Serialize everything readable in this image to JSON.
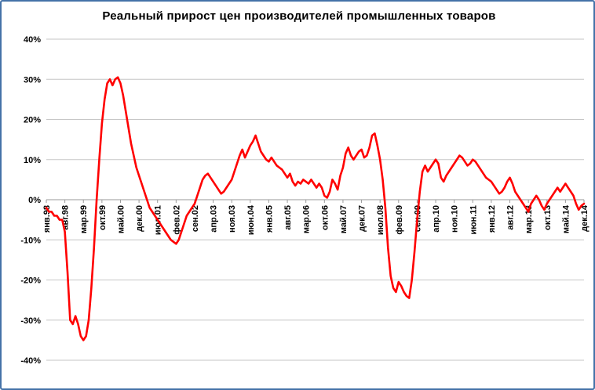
{
  "frame": {
    "border_color": "#4472a8",
    "background_color": "#ffffff"
  },
  "chart_data": {
    "type": "line",
    "title": "Реальный прирост цен производителей промышленных товаров",
    "legend": "none",
    "grid": true,
    "line_color": "#ff0000",
    "ylim": [
      -40,
      40
    ],
    "y_ticks": [
      40,
      30,
      20,
      10,
      0,
      -10,
      -20,
      -30,
      -40
    ],
    "y_tick_suffix": "%",
    "x_tick_interval_months": 7,
    "x_tick_labels": [
      "янв.98",
      "авг.98",
      "мар.99",
      "окт.99",
      "май.00",
      "дек.00",
      "июл.01",
      "фев.02",
      "сен.02",
      "апр.03",
      "ноя.03",
      "июн.04",
      "янв.05",
      "авг.05",
      "мар.06",
      "окт.06",
      "май.07",
      "дек.07",
      "июл.08",
      "фев.09",
      "сен.09",
      "апр.10",
      "ноя.10",
      "июн.11",
      "янв.12",
      "авг.12",
      "мар.13",
      "окт.13",
      "май.14",
      "дек.14"
    ],
    "x_start": "янв.98",
    "x_end": "дек.14",
    "values": [
      -2,
      -3,
      -3,
      -4,
      -4,
      -5,
      -5,
      -8,
      -18,
      -30,
      -31,
      -29,
      -31,
      -34,
      -35,
      -34,
      -30,
      -22,
      -12,
      0,
      10,
      19,
      25,
      29,
      30,
      28.5,
      30,
      30.5,
      29,
      26,
      22,
      18,
      14,
      11,
      8,
      6,
      4,
      2,
      0,
      -2,
      -3,
      -4,
      -5,
      -6,
      -7,
      -8,
      -9,
      -10,
      -10.5,
      -11,
      -10,
      -8,
      -6,
      -4,
      -3,
      -2,
      -1,
      1,
      3,
      5,
      6,
      6.5,
      5.5,
      4.5,
      3.5,
      2.5,
      1.5,
      2,
      3,
      4,
      5,
      7,
      9,
      11,
      12.5,
      10.5,
      12,
      13.5,
      14.5,
      16,
      14,
      12,
      11,
      10,
      9.5,
      10.5,
      9.5,
      8.5,
      8,
      7.5,
      6.5,
      5.5,
      6.5,
      4.5,
      3.5,
      4.5,
      4,
      5,
      4.5,
      4,
      5,
      4,
      3,
      4,
      3,
      1,
      0.5,
      2,
      5,
      4,
      2.5,
      6,
      8,
      11.5,
      13,
      11,
      10,
      11,
      12,
      12.5,
      10.5,
      11,
      13,
      16,
      16.5,
      13.5,
      10,
      5,
      -2,
      -12,
      -19,
      -22,
      -23,
      -20.5,
      -21.5,
      -23,
      -24,
      -24.5,
      -20,
      -13,
      -5,
      2,
      7,
      8.5,
      7,
      8,
      9,
      10,
      9,
      5.5,
      4.5,
      6,
      7,
      8,
      9,
      10,
      11,
      10.5,
      9.5,
      8.5,
      9,
      10,
      9.5,
      8.5,
      7.5,
      6.5,
      5.5,
      5,
      4.5,
      3.5,
      2.5,
      1.5,
      2,
      3,
      4.5,
      5.5,
      4,
      2,
      1,
      0,
      -1,
      -2,
      -3,
      -1,
      0,
      1,
      0,
      -1.5,
      -2.5,
      -1,
      0,
      1,
      2,
      3,
      2,
      3,
      4,
      3,
      2,
      1,
      -1,
      -2.5,
      -1.5,
      -1
    ]
  }
}
